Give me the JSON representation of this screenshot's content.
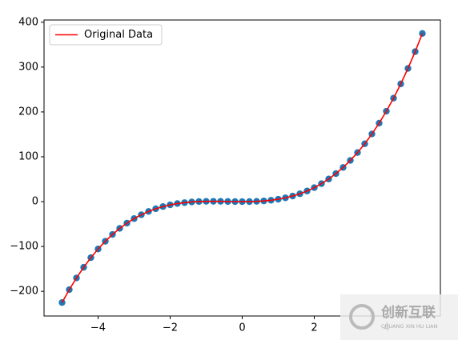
{
  "chart_data": {
    "type": "line",
    "x": [
      -5,
      -4.8,
      -4.6,
      -4.4,
      -4.2,
      -4,
      -3.8,
      -3.6,
      -3.4,
      -3.2,
      -3,
      -2.8,
      -2.6,
      -2.4,
      -2.2,
      -2,
      -1.8,
      -1.6,
      -1.4,
      -1.2,
      -1,
      -0.8,
      -0.6,
      -0.4,
      -0.2,
      0,
      0.2,
      0.4,
      0.6,
      0.8,
      1,
      1.2,
      1.4,
      1.6,
      1.8,
      2,
      2.2,
      2.4,
      2.6,
      2.8,
      3,
      3.2,
      3.4,
      3.6,
      3.8,
      4,
      4.2,
      4.4,
      4.6,
      4.8,
      5
    ],
    "series": [
      {
        "name": "Original Data",
        "color": "#ff0000",
        "marker_color": "#1f77b4",
        "values": [
          -225,
          -196.3,
          -170.1,
          -146.4,
          -124.9,
          -105.6,
          -88.4,
          -73.1,
          -59.6,
          -47.9,
          -37.8,
          -29.2,
          -21.9,
          -15.9,
          -11.0,
          -7.2,
          -4.3,
          -2.2,
          -0.7,
          0.2,
          0.6,
          0.7,
          0.6,
          0.3,
          0.1,
          0,
          0.1,
          0.6,
          1.6,
          3.1,
          5.4,
          8.5,
          12.5,
          17.5,
          23.7,
          31.2,
          40.1,
          50.5,
          62.5,
          76.2,
          91.8,
          109.4,
          129.0,
          150.9,
          175.0,
          201.6,
          230.7,
          262.5,
          297.1,
          334.5,
          375
        ]
      }
    ],
    "xlim": [
      -5.5,
      5.5
    ],
    "xticks": [
      {
        "value": -4,
        "label": "−4"
      },
      {
        "value": -2,
        "label": "−2"
      },
      0,
      2,
      4
    ],
    "ylim": [
      -255,
      405
    ],
    "yticks": [
      {
        "value": -200,
        "label": "−200"
      },
      {
        "value": -100,
        "label": "−100"
      },
      0,
      100,
      200,
      300,
      400
    ],
    "legend": "upper left"
  },
  "watermark": {
    "title": "创新互联",
    "subtitle": "CHUANG XIN HU LIAN"
  }
}
